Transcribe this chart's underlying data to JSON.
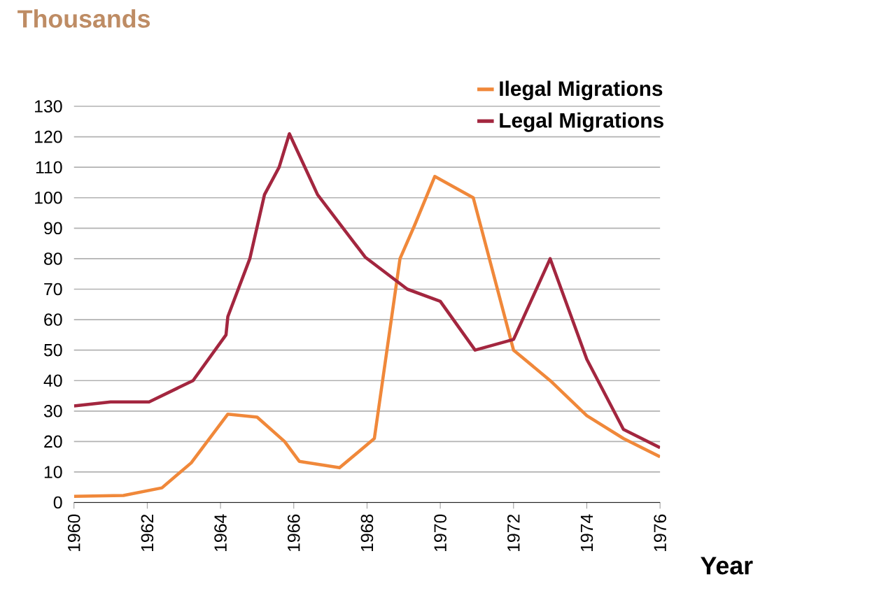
{
  "chart_data": {
    "type": "line",
    "ylabel": "Thousands",
    "xlabel": "Year",
    "xlim": [
      1960,
      1976
    ],
    "xticks": [
      1960,
      1962,
      1964,
      1966,
      1968,
      1970,
      1972,
      1974,
      1976
    ],
    "ylim": [
      0,
      130
    ],
    "yticks": [
      0,
      10,
      20,
      30,
      40,
      50,
      60,
      70,
      80,
      90,
      100,
      110,
      120,
      130
    ],
    "grid": "y",
    "legend": "top right",
    "marker": "none",
    "line_style": "solid",
    "series": [
      {
        "name": "Ilegal  Migrations",
        "color": "#f0883a",
        "x": [
          1960,
          1961.35,
          1962.4,
          1963.2,
          1964.2,
          1965.0,
          1965.75,
          1966.15,
          1967.25,
          1968.2,
          1968.9,
          1969.3,
          1969.85,
          1970.9,
          1972.0,
          1973.0,
          1974.0,
          1975.0,
          1976.0
        ],
        "values": [
          2,
          2.3,
          4.8,
          13,
          29,
          28,
          20,
          13.5,
          11.4,
          21,
          80,
          91,
          107,
          100,
          50,
          40,
          28.5,
          21,
          15
        ]
      },
      {
        "name": "Legal Migrations",
        "color": "#a3263f",
        "x": [
          1960,
          1961.0,
          1962.05,
          1963.25,
          1964.15,
          1964.2,
          1964.8,
          1965.2,
          1965.6,
          1965.88,
          1966.65,
          1967.95,
          1969.1,
          1970.0,
          1970.95,
          1972.0,
          1973.0,
          1974.0,
          1975.0,
          1976.0
        ],
        "values": [
          31.7,
          33,
          33,
          40,
          55,
          61,
          80,
          101,
          110,
          121,
          101,
          80.5,
          70,
          66,
          50,
          53.5,
          80,
          47,
          24,
          18
        ]
      }
    ]
  }
}
